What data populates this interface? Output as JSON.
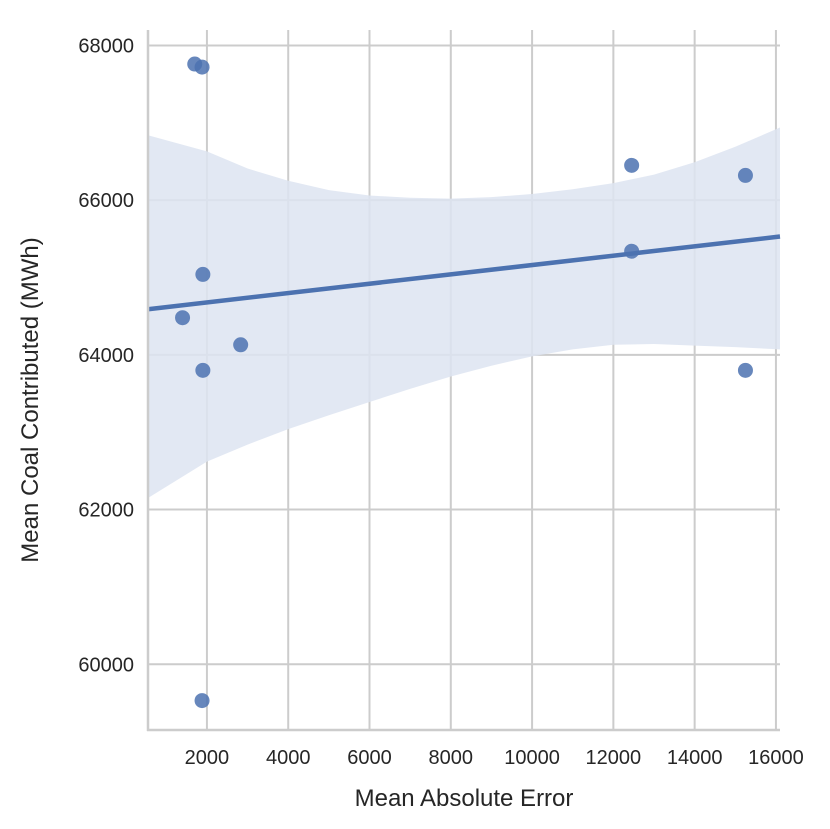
{
  "chart_data": {
    "type": "scatter",
    "xlabel": "Mean Absolute Error",
    "ylabel": "Mean Coal Contributed (MWh)",
    "xlim": [
      550,
      16100
    ],
    "ylim": [
      59150,
      68200
    ],
    "x_ticks": [
      2000,
      4000,
      6000,
      8000,
      10000,
      12000,
      14000,
      16000
    ],
    "y_ticks": [
      60000,
      62000,
      64000,
      66000,
      68000
    ],
    "grid": true,
    "colors": {
      "points": "#4c72b0",
      "line": "#4c72b0",
      "band": "#dde4f1",
      "grid": "#cccccc",
      "axis": "#cccccc"
    },
    "points": [
      {
        "x": 1700,
        "y": 67760
      },
      {
        "x": 1880,
        "y": 67720
      },
      {
        "x": 1400,
        "y": 64480
      },
      {
        "x": 1900,
        "y": 65040
      },
      {
        "x": 1900,
        "y": 63800
      },
      {
        "x": 1880,
        "y": 59530
      },
      {
        "x": 2830,
        "y": 64130
      },
      {
        "x": 12450,
        "y": 66450
      },
      {
        "x": 12450,
        "y": 65340
      },
      {
        "x": 15250,
        "y": 66320
      },
      {
        "x": 15250,
        "y": 63800
      }
    ],
    "regression": {
      "x": [
        550,
        16100
      ],
      "y": [
        64590,
        65530
      ]
    },
    "confidence_band": {
      "x": [
        550,
        2000,
        3000,
        4000,
        5000,
        6000,
        7000,
        8000,
        9000,
        10000,
        11000,
        12000,
        13000,
        14000,
        15000,
        16100
      ],
      "upper": [
        66840,
        66630,
        66410,
        66250,
        66130,
        66060,
        66030,
        66020,
        66040,
        66080,
        66140,
        66220,
        66330,
        66490,
        66690,
        66940
      ],
      "lower": [
        62150,
        62620,
        62840,
        63040,
        63220,
        63390,
        63560,
        63720,
        63860,
        63980,
        64070,
        64130,
        64140,
        64120,
        64100,
        64070
      ]
    }
  }
}
